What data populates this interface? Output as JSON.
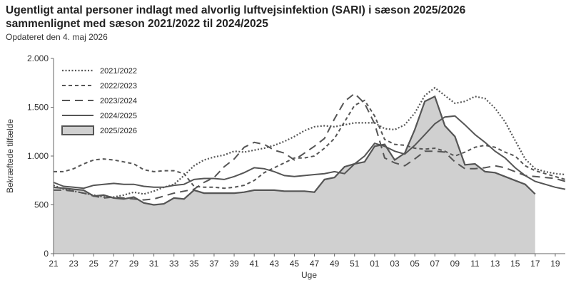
{
  "chart_data": {
    "type": "line",
    "title_line1": "Ugentligt antal personer indlagt med alvorlig luftvejsinfektion (SARI) i sæson 2025/2026",
    "title_line2": "sammenlignet med sæson 2021/2022 til 2024/2025",
    "subtitle": "Opdateret den 4. maj 2026",
    "xlabel": "Uge",
    "ylabel": "Bekræftede tilfælde",
    "ylim": [
      0,
      2000
    ],
    "yticks": [
      0,
      500,
      1000,
      1500,
      2000
    ],
    "ytick_labels": [
      "0",
      "500",
      "1.000",
      "1.500",
      "2.000"
    ],
    "weeks": [
      "21",
      "22",
      "23",
      "24",
      "25",
      "26",
      "27",
      "28",
      "29",
      "30",
      "31",
      "32",
      "33",
      "34",
      "35",
      "36",
      "37",
      "38",
      "39",
      "40",
      "41",
      "42",
      "43",
      "44",
      "45",
      "46",
      "47",
      "48",
      "49",
      "50",
      "51",
      "52",
      "01",
      "02",
      "03",
      "04",
      "05",
      "06",
      "07",
      "08",
      "09",
      "10",
      "11",
      "12",
      "13",
      "14",
      "15",
      "16",
      "17",
      "18",
      "19",
      "20"
    ],
    "xtick_labels": [
      "21",
      "23",
      "25",
      "27",
      "29",
      "31",
      "33",
      "35",
      "37",
      "39",
      "41",
      "43",
      "45",
      "47",
      "49",
      "51",
      "01",
      "03",
      "05",
      "07",
      "09",
      "11",
      "13",
      "15",
      "17",
      "19"
    ],
    "legend_position": "top-left",
    "series": [
      {
        "name": "2021/2022",
        "style": "dotted",
        "values": [
          700,
          660,
          640,
          620,
          600,
          580,
          580,
          600,
          630,
          610,
          640,
          680,
          710,
          800,
          900,
          960,
          990,
          1010,
          1050,
          1040,
          1060,
          1080,
          1110,
          1150,
          1200,
          1260,
          1300,
          1310,
          1300,
          1320,
          1340,
          1340,
          1340,
          1280,
          1270,
          1320,
          1440,
          1620,
          1700,
          1620,
          1540,
          1560,
          1610,
          1590,
          1490,
          1350,
          1160,
          970,
          870,
          840,
          820,
          810
        ]
      },
      {
        "name": "2022/2023",
        "style": "dashed-short",
        "values": [
          840,
          840,
          870,
          920,
          960,
          970,
          960,
          940,
          920,
          860,
          840,
          850,
          850,
          820,
          690,
          680,
          680,
          670,
          680,
          700,
          750,
          830,
          880,
          930,
          980,
          980,
          1000,
          1080,
          1180,
          1350,
          1520,
          1570,
          1410,
          1170,
          1120,
          1110,
          1080,
          1070,
          1080,
          1050,
          1000,
          1040,
          1090,
          1110,
          1090,
          1040,
          1000,
          900,
          850,
          820,
          790,
          760
        ]
      },
      {
        "name": "2023/2024",
        "style": "dashed-long",
        "values": [
          650,
          650,
          640,
          620,
          590,
          570,
          580,
          570,
          560,
          550,
          560,
          590,
          620,
          640,
          660,
          730,
          780,
          890,
          970,
          1090,
          1140,
          1120,
          1060,
          1030,
          960,
          1030,
          1100,
          1180,
          1380,
          1560,
          1640,
          1540,
          1330,
          980,
          930,
          900,
          970,
          1050,
          1050,
          1040,
          940,
          870,
          870,
          880,
          900,
          880,
          840,
          800,
          790,
          780,
          770,
          740
        ]
      },
      {
        "name": "2024/2025",
        "style": "solid",
        "values": [
          730,
          690,
          680,
          670,
          700,
          710,
          720,
          710,
          710,
          690,
          680,
          680,
          700,
          710,
          760,
          770,
          770,
          760,
          790,
          830,
          880,
          870,
          840,
          800,
          790,
          800,
          810,
          820,
          840,
          820,
          920,
          1000,
          1130,
          1100,
          1050,
          1020,
          1110,
          1220,
          1330,
          1400,
          1410,
          1320,
          1220,
          1140,
          1050,
          980,
          880,
          800,
          740,
          710,
          680,
          660
        ]
      },
      {
        "name": "2025/2026",
        "style": "area",
        "values": [
          680,
          670,
          660,
          650,
          590,
          600,
          570,
          560,
          580,
          520,
          500,
          510,
          570,
          560,
          650,
          620,
          620,
          620,
          620,
          630,
          650,
          650,
          650,
          640,
          640,
          640,
          630,
          760,
          780,
          890,
          920,
          940,
          1100,
          1120,
          960,
          1030,
          1270,
          1560,
          1610,
          1310,
          1200,
          910,
          920,
          840,
          830,
          790,
          750,
          710,
          610
        ]
      }
    ]
  },
  "colors": {
    "line": "#555555",
    "area_fill": "#d0d0d0",
    "axis": "#666666"
  }
}
